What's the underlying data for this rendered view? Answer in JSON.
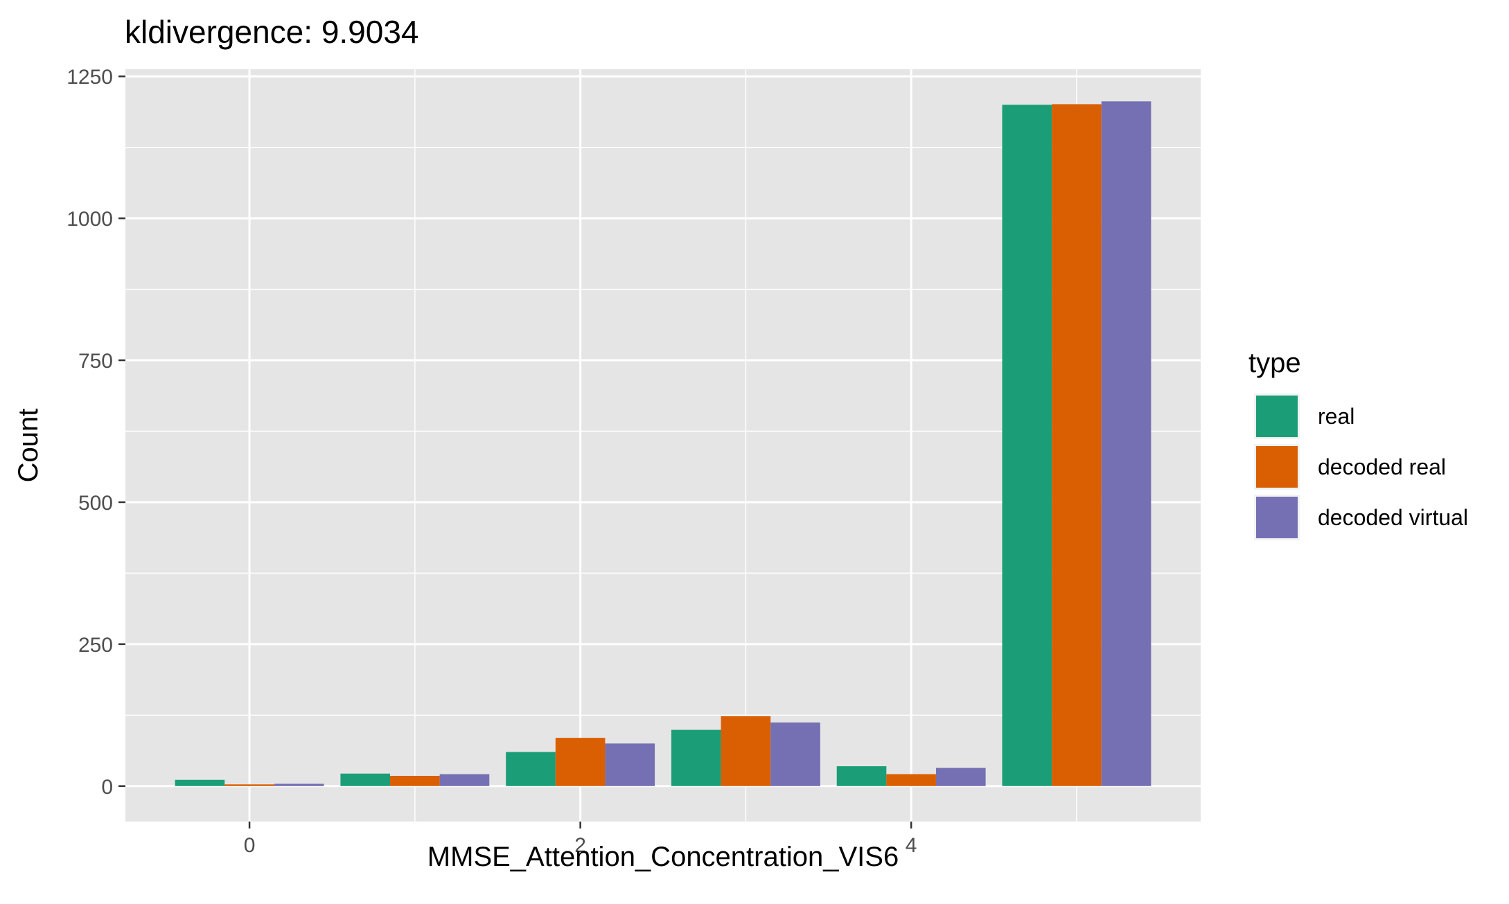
{
  "chart_data": {
    "type": "bar",
    "title": "kldivergence: 9.9034",
    "xlabel": "MMSE_Attention_Concentration_VIS6",
    "ylabel": "Count",
    "x": [
      0,
      1,
      2,
      3,
      4,
      5
    ],
    "x_ticks": [
      0,
      2,
      4
    ],
    "x_tick_labels": [
      "0",
      "2",
      "4"
    ],
    "xlim": [
      -0.75,
      5.75
    ],
    "ylim": [
      -62.5,
      1262.5
    ],
    "y_ticks": [
      0,
      250,
      500,
      750,
      1000,
      1250
    ],
    "y_tick_labels": [
      "0",
      "250",
      "500",
      "750",
      "1000",
      "1250"
    ],
    "grid": true,
    "legend": {
      "title": "type",
      "position": "right"
    },
    "series": [
      {
        "name": "real",
        "color": "#1b9e77",
        "values": [
          11,
          22,
          60,
          99,
          35,
          1200
        ]
      },
      {
        "name": "decoded real",
        "color": "#d95f02",
        "values": [
          3,
          18,
          85,
          123,
          21,
          1201
        ]
      },
      {
        "name": "decoded virtual",
        "color": "#7570b3",
        "values": [
          4,
          21,
          75,
          112,
          32,
          1206
        ]
      }
    ]
  }
}
